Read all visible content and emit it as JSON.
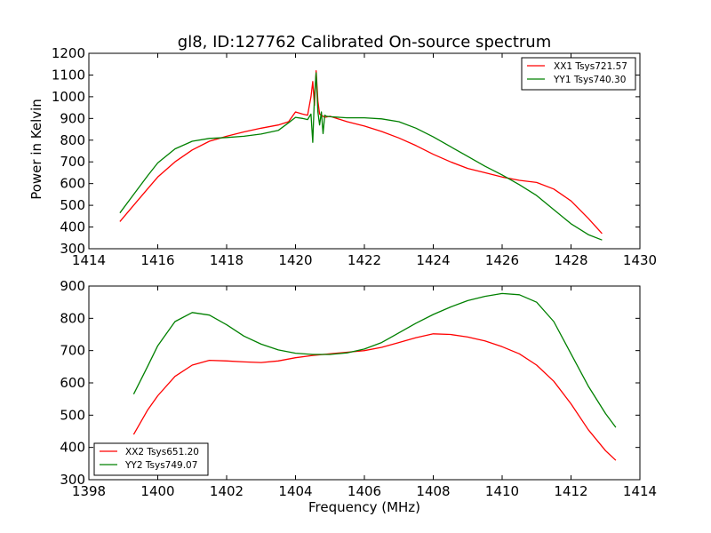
{
  "figure": {
    "background": "#ffffff"
  },
  "chart_data": [
    {
      "type": "line",
      "title": "gl8, ID:127762 Calibrated On-source spectrum",
      "xlabel": "",
      "ylabel": "Power in Kelvin",
      "xlim": [
        1414,
        1430
      ],
      "ylim": [
        300,
        1200
      ],
      "xticks": [
        1414,
        1416,
        1418,
        1420,
        1422,
        1424,
        1426,
        1428,
        1430
      ],
      "yticks": [
        300,
        400,
        500,
        600,
        700,
        800,
        900,
        1000,
        1100,
        1200
      ],
      "grid": false,
      "legend_position": "top-right",
      "series": [
        {
          "name": "XX1 Tsys721.57",
          "color": "#ff0000",
          "x": [
            1414.9,
            1415.3,
            1415.7,
            1416.0,
            1416.5,
            1417.0,
            1417.5,
            1418.0,
            1418.5,
            1419.0,
            1419.5,
            1419.8,
            1420.0,
            1420.2,
            1420.35,
            1420.45,
            1420.5,
            1420.55,
            1420.6,
            1420.65,
            1420.7,
            1420.75,
            1420.85,
            1421.0,
            1421.5,
            1422.0,
            1422.5,
            1423.0,
            1423.5,
            1424.0,
            1424.5,
            1425.0,
            1425.5,
            1426.0,
            1426.5,
            1427.0,
            1427.5,
            1428.0,
            1428.5,
            1428.9
          ],
          "y": [
            425,
            500,
            575,
            630,
            700,
            755,
            795,
            818,
            838,
            855,
            870,
            885,
            930,
            920,
            915,
            1000,
            1070,
            960,
            1120,
            980,
            920,
            915,
            905,
            910,
            885,
            865,
            840,
            810,
            775,
            735,
            700,
            670,
            650,
            630,
            615,
            605,
            575,
            520,
            440,
            370
          ]
        },
        {
          "name": "YY1 Tsys740.30",
          "color": "#008000",
          "x": [
            1414.9,
            1415.3,
            1415.7,
            1416.0,
            1416.5,
            1417.0,
            1417.5,
            1418.0,
            1418.5,
            1419.0,
            1419.5,
            1419.8,
            1420.0,
            1420.2,
            1420.35,
            1420.45,
            1420.5,
            1420.55,
            1420.6,
            1420.65,
            1420.7,
            1420.75,
            1420.8,
            1420.85,
            1420.9,
            1421.0,
            1421.5,
            1422.0,
            1422.5,
            1423.0,
            1423.5,
            1424.0,
            1424.5,
            1425.0,
            1425.5,
            1426.0,
            1426.5,
            1427.0,
            1427.5,
            1428.0,
            1428.5,
            1428.9
          ],
          "y": [
            465,
            550,
            635,
            695,
            760,
            795,
            808,
            812,
            818,
            828,
            845,
            880,
            905,
            900,
            895,
            920,
            790,
            1000,
            1110,
            930,
            870,
            930,
            830,
            915,
            910,
            908,
            903,
            903,
            898,
            885,
            855,
            815,
            770,
            725,
            680,
            640,
            595,
            545,
            480,
            415,
            365,
            340
          ]
        }
      ]
    },
    {
      "type": "line",
      "title": "",
      "xlabel": "Frequency (MHz)",
      "ylabel": "",
      "xlim": [
        1398,
        1414
      ],
      "ylim": [
        300,
        900
      ],
      "xticks": [
        1398,
        1400,
        1402,
        1404,
        1406,
        1408,
        1410,
        1412,
        1414
      ],
      "yticks": [
        300,
        400,
        500,
        600,
        700,
        800,
        900
      ],
      "grid": false,
      "legend_position": "bottom-left",
      "series": [
        {
          "name": "XX2 Tsys651.20",
          "color": "#ff0000",
          "x": [
            1399.3,
            1399.7,
            1400.0,
            1400.5,
            1401.0,
            1401.5,
            1402.0,
            1402.5,
            1403.0,
            1403.5,
            1404.0,
            1404.5,
            1405.0,
            1405.5,
            1406.0,
            1406.5,
            1407.0,
            1407.5,
            1408.0,
            1408.5,
            1409.0,
            1409.5,
            1410.0,
            1410.5,
            1411.0,
            1411.5,
            1412.0,
            1412.5,
            1413.0,
            1413.3
          ],
          "y": [
            440,
            515,
            560,
            620,
            655,
            670,
            668,
            665,
            663,
            668,
            678,
            685,
            690,
            695,
            700,
            710,
            725,
            740,
            752,
            750,
            742,
            730,
            712,
            690,
            655,
            605,
            535,
            455,
            390,
            360
          ]
        },
        {
          "name": "YY2 Tsys749.07",
          "color": "#008000",
          "x": [
            1399.3,
            1399.7,
            1400.0,
            1400.5,
            1401.0,
            1401.5,
            1402.0,
            1402.5,
            1403.0,
            1403.5,
            1404.0,
            1404.5,
            1405.0,
            1405.5,
            1406.0,
            1406.5,
            1407.0,
            1407.5,
            1408.0,
            1408.5,
            1409.0,
            1409.5,
            1410.0,
            1410.5,
            1411.0,
            1411.5,
            1412.0,
            1412.5,
            1413.0,
            1413.3
          ],
          "y": [
            565,
            650,
            715,
            790,
            818,
            810,
            780,
            745,
            720,
            702,
            692,
            688,
            688,
            693,
            705,
            725,
            755,
            785,
            812,
            835,
            855,
            868,
            877,
            873,
            850,
            790,
            690,
            590,
            505,
            462
          ]
        }
      ]
    }
  ]
}
